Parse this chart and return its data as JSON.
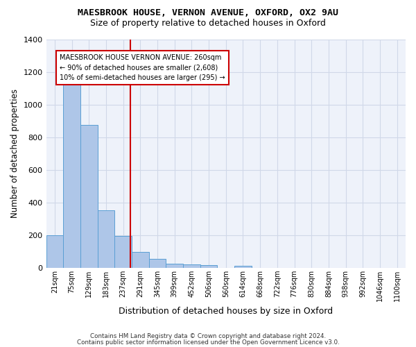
{
  "title": "MAESBROOK HOUSE, VERNON AVENUE, OXFORD, OX2 9AU",
  "subtitle": "Size of property relative to detached houses in Oxford",
  "xlabel": "Distribution of detached houses by size in Oxford",
  "ylabel": "Number of detached properties",
  "footer_line1": "Contains HM Land Registry data © Crown copyright and database right 2024.",
  "footer_line2": "Contains public sector information licensed under the Open Government Licence v3.0.",
  "bin_labels": [
    "21sqm",
    "75sqm",
    "129sqm",
    "183sqm",
    "237sqm",
    "291sqm",
    "345sqm",
    "399sqm",
    "452sqm",
    "506sqm",
    "560sqm",
    "614sqm",
    "668sqm",
    "722sqm",
    "776sqm",
    "830sqm",
    "884sqm",
    "938sqm",
    "992sqm",
    "1046sqm",
    "1100sqm"
  ],
  "bar_heights": [
    197,
    1120,
    875,
    350,
    193,
    98,
    55,
    25,
    20,
    15,
    0,
    13,
    0,
    0,
    0,
    0,
    0,
    0,
    0,
    0,
    0
  ],
  "bar_color": "#aec6e8",
  "bar_edge_color": "#5a9fd4",
  "grid_color": "#d0d8e8",
  "background_color": "#eef2fa",
  "vline_color": "#cc0000",
  "annotation_text": "MAESBROOK HOUSE VERNON AVENUE: 260sqm\n← 90% of detached houses are smaller (2,608)\n10% of semi-detached houses are larger (295) →",
  "annotation_box_color": "#ffffff",
  "annotation_box_edge": "#cc0000",
  "ylim": [
    0,
    1400
  ],
  "yticks": [
    0,
    200,
    400,
    600,
    800,
    1000,
    1200,
    1400
  ]
}
